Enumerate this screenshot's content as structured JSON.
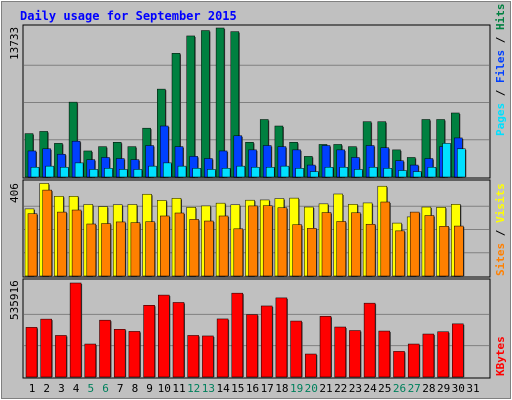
{
  "colors": {
    "background": "#c0c0c0",
    "title": "#0000ff",
    "hits": "#008040",
    "files": "#0040ff",
    "pages": "#00e0ff",
    "visits": "#ffff00",
    "sites": "#ff8000",
    "kbytes": "#ff0000",
    "grid": "#808080",
    "weekend_label": "#00805c"
  },
  "chart_data": [
    {
      "type": "bar",
      "title": "Daily usage for September 2015",
      "y_max_label": "13733",
      "ylim": [
        0,
        13733
      ],
      "side_label": [
        "Pages",
        "Files",
        "Hits"
      ],
      "categories": [
        "1",
        "2",
        "3",
        "4",
        "5",
        "6",
        "7",
        "8",
        "9",
        "10",
        "11",
        "12",
        "13",
        "14",
        "15",
        "16",
        "17",
        "18",
        "19",
        "20",
        "21",
        "22",
        "23",
        "24",
        "25",
        "26",
        "27",
        "28",
        "29",
        "30",
        "31"
      ],
      "weekend_days": [
        "5",
        "6",
        "12",
        "13",
        "19",
        "20",
        "26",
        "27"
      ],
      "series": [
        {
          "name": "Hits",
          "values": [
            4000,
            4200,
            3100,
            6900,
            2400,
            2800,
            3200,
            2800,
            4500,
            8100,
            11400,
            13000,
            13500,
            13733,
            13400,
            3200,
            5300,
            4700,
            3200,
            1900,
            3000,
            3000,
            2800,
            5100,
            5100,
            2500,
            1800,
            5300,
            5300,
            5900,
            0
          ]
        },
        {
          "name": "Files",
          "values": [
            2400,
            2600,
            2100,
            3300,
            1600,
            1800,
            1700,
            1600,
            2900,
            4700,
            2800,
            1900,
            1700,
            2400,
            3800,
            2500,
            2900,
            2800,
            2500,
            1100,
            2900,
            2500,
            1800,
            2900,
            2700,
            1500,
            1100,
            1700,
            2800,
            3600,
            0
          ]
        },
        {
          "name": "Pages",
          "values": [
            900,
            1000,
            900,
            1300,
            700,
            800,
            700,
            700,
            1000,
            1300,
            1000,
            800,
            700,
            800,
            1000,
            900,
            900,
            1000,
            800,
            500,
            900,
            900,
            700,
            900,
            800,
            600,
            500,
            900,
            3100,
            2600,
            0
          ]
        }
      ]
    },
    {
      "type": "bar",
      "y_max_label": "406",
      "ylim": [
        0,
        406
      ],
      "side_label": [
        "Sites",
        "Visits"
      ],
      "series": [
        {
          "name": "Visits",
          "values": [
            293,
            404,
            348,
            348,
            312,
            303,
            311,
            312,
            357,
            330,
            339,
            300,
            306,
            318,
            311,
            331,
            332,
            338,
            340,
            301,
            315,
            358,
            313,
            319,
            392,
            231,
            258,
            301,
            300,
            313,
            0
          ]
        },
        {
          "name": "Sites",
          "values": [
            272,
            375,
            279,
            288,
            227,
            229,
            236,
            233,
            237,
            262,
            275,
            247,
            240,
            262,
            206,
            306,
            307,
            298,
            224,
            208,
            277,
            238,
            276,
            226,
            323,
            197,
            279,
            264,
            217,
            218,
            0
          ]
        }
      ]
    },
    {
      "type": "bar",
      "y_max_label": "535916",
      "ylim": [
        0,
        535916
      ],
      "side_label": [
        "KBytes"
      ],
      "series": [
        {
          "name": "KBytes",
          "values": [
            283000,
            330000,
            237000,
            535916,
            188000,
            324000,
            272000,
            260000,
            409000,
            467000,
            425000,
            237000,
            234000,
            331000,
            478000,
            356000,
            405000,
            451000,
            319000,
            131000,
            346000,
            285000,
            265000,
            421000,
            262000,
            146000,
            188000,
            245000,
            258000,
            303000,
            0
          ]
        }
      ]
    }
  ]
}
